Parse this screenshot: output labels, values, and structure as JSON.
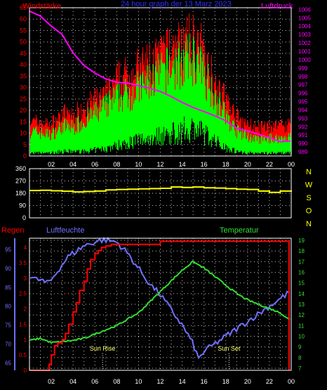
{
  "colors": {
    "background": "#000000",
    "frame": "#ffffff",
    "grid": "#c8c8c8",
    "wind_avg": "#00ff00",
    "wind_gust": "#ff0000",
    "pressure": "#ff00ff",
    "direction": "#ffff00",
    "humidity": "#7070ff",
    "temperature": "#33dd33",
    "rain": "#ff0000"
  },
  "chart_data": [
    {
      "type": "area",
      "title": "24 hour graph der 13 Marz 2023",
      "left_label": "Windstärke",
      "right_label": "Luftdruck",
      "x_ticks": [
        "02",
        "04",
        "06",
        "08",
        "10",
        "12",
        "14",
        "16",
        "18",
        "20",
        "22",
        "00"
      ],
      "y_left_ticks": [
        0,
        5,
        10,
        15,
        20,
        25,
        30,
        35,
        40,
        45,
        50,
        55,
        60,
        65
      ],
      "y_right_ticks": [
        989,
        990,
        991,
        992,
        993,
        994,
        995,
        996,
        997,
        998,
        999,
        1000,
        1001,
        1002,
        1003,
        1004,
        1005,
        1006
      ],
      "ylim_left": [
        0,
        65
      ],
      "ylim_right": [
        988.5,
        1006.2
      ],
      "xlim": [
        0,
        24
      ],
      "grid": true,
      "series": [
        {
          "name": "Windstärke",
          "x": [
            0,
            1,
            2,
            3,
            4,
            5,
            6,
            7,
            8,
            9,
            10,
            11,
            12,
            13,
            14,
            15,
            16,
            17,
            18,
            19,
            20,
            21,
            22,
            23,
            24
          ],
          "low": [
            2,
            2,
            2,
            3,
            3,
            3,
            4,
            5,
            7,
            9,
            11,
            12,
            14,
            15,
            17,
            19,
            15,
            10,
            6,
            3,
            2,
            2,
            2,
            2,
            2
          ],
          "high": [
            14,
            13,
            12,
            17,
            16,
            20,
            24,
            28,
            33,
            35,
            38,
            42,
            46,
            50,
            52,
            55,
            46,
            34,
            22,
            14,
            11,
            9,
            10,
            10,
            11
          ]
        },
        {
          "name": "Windböen",
          "x": [
            0,
            1,
            2,
            3,
            4,
            5,
            6,
            7,
            8,
            9,
            10,
            11,
            12,
            13,
            14,
            15,
            16,
            17,
            18,
            19,
            20,
            21,
            22,
            23,
            24
          ],
          "high": [
            18,
            17,
            16,
            22,
            21,
            26,
            30,
            34,
            40,
            45,
            48,
            52,
            56,
            60,
            62,
            65,
            56,
            42,
            30,
            20,
            16,
            14,
            15,
            16,
            17
          ]
        },
        {
          "name": "Luftdruck",
          "x": [
            0,
            1,
            2,
            3,
            4,
            5,
            6,
            7,
            8,
            9,
            10,
            11,
            12,
            13,
            14,
            15,
            16,
            17,
            18,
            19,
            20,
            21,
            22,
            23,
            24
          ],
          "y": [
            1005.8,
            1005.2,
            1004.0,
            1003.0,
            1000.8,
            999.3,
            998.4,
            997.7,
            997.3,
            997.2,
            996.9,
            996.6,
            996.2,
            995.6,
            994.9,
            994.3,
            993.8,
            993.3,
            992.7,
            991.8,
            991.5,
            991.1,
            990.7,
            990.2,
            990.3
          ]
        }
      ]
    },
    {
      "type": "line",
      "right_label": [
        "N",
        "W",
        "S",
        "O",
        "N"
      ],
      "y_ticks": [
        0,
        90,
        180,
        270,
        360
      ],
      "ylim": [
        0,
        360
      ],
      "xlim": [
        0,
        24
      ],
      "grid": true,
      "series": [
        {
          "name": "Windrichtung",
          "x": [
            0,
            1,
            2,
            3,
            4,
            5,
            6,
            7,
            8,
            9,
            10,
            11,
            12,
            13,
            14,
            15,
            16,
            17,
            18,
            19,
            20,
            21,
            22,
            23,
            24
          ],
          "y": [
            200,
            202,
            198,
            195,
            190,
            193,
            196,
            204,
            208,
            210,
            212,
            214,
            216,
            226,
            222,
            226,
            220,
            218,
            214,
            210,
            208,
            196,
            186,
            196,
            202
          ]
        }
      ]
    },
    {
      "type": "line",
      "left_label": "Regen",
      "mid_label": "Luftfeuchte",
      "right_label": "Temperatur",
      "x_ticks": [
        "02",
        "04",
        "06",
        "08",
        "10",
        "12",
        "14",
        "16",
        "18",
        "20",
        "22",
        "00"
      ],
      "y_rain_ticks": [
        0,
        0.5,
        1,
        1.5,
        2,
        2.5,
        3,
        3.5,
        4
      ],
      "y_humidity_ticks": [
        65,
        70,
        75,
        80,
        85,
        90,
        95
      ],
      "y_temp_ticks": [
        7,
        8,
        9,
        10,
        11,
        12,
        13,
        14,
        15,
        16,
        17,
        18,
        19
      ],
      "ylim_rain": [
        0,
        4.3
      ],
      "ylim_humidity": [
        63,
        98
      ],
      "ylim_temp": [
        6.8,
        19.2
      ],
      "xlim": [
        0,
        24
      ],
      "grid": true,
      "annotations": [
        {
          "text": "Sun Rise",
          "x": 6.7
        },
        {
          "text": "Sun Set",
          "x": 18.3
        }
      ],
      "series": [
        {
          "name": "Regen",
          "x": [
            0,
            1.6,
            1.8,
            2,
            2.3,
            2.6,
            3,
            3.3,
            3.6,
            4,
            4.3,
            4.6,
            5,
            5.3,
            5.6,
            6,
            6.3,
            6.6,
            7,
            7.5,
            8,
            9,
            10,
            11,
            11.5,
            12,
            13,
            14,
            15,
            16,
            17,
            18,
            19,
            20,
            21,
            22,
            23,
            23.6,
            23.8
          ],
          "y": [
            0,
            0,
            0.2,
            0.5,
            0.8,
            0.9,
            1.0,
            1.2,
            1.5,
            1.9,
            2.2,
            2.6,
            2.9,
            3.3,
            3.6,
            3.8,
            3.9,
            4.0,
            4.05,
            4.1,
            4.1,
            4.1,
            4.1,
            4.1,
            4.1,
            4.2,
            4.2,
            4.2,
            4.2,
            4.2,
            4.2,
            4.2,
            4.2,
            4.2,
            4.2,
            4.2,
            4.2,
            4.2,
            0
          ]
        },
        {
          "name": "Luftfeuchte",
          "x": [
            0,
            0.6,
            1,
            1.6,
            2,
            2.5,
            3,
            3.5,
            4,
            4.5,
            5,
            5.5,
            6,
            6.5,
            7,
            8,
            9,
            10,
            11,
            12,
            13,
            14,
            15,
            15.5,
            16,
            17,
            18,
            19,
            20,
            21,
            22,
            23,
            24
          ],
          "y": [
            88,
            87,
            87,
            86,
            87,
            89,
            91,
            93,
            94,
            95,
            96,
            96.5,
            97,
            97.5,
            97.5,
            97,
            94,
            90,
            86,
            83,
            79,
            75,
            70,
            66,
            68,
            70,
            72,
            74,
            76,
            78,
            80,
            82,
            84
          ]
        },
        {
          "name": "Temperatur",
          "x": [
            0,
            1,
            2,
            3,
            4,
            5,
            6,
            7,
            8,
            9,
            10,
            11,
            12,
            13,
            14,
            14.5,
            15,
            16,
            17,
            18,
            19,
            20,
            21,
            22,
            23,
            24
          ],
          "y": [
            9.6,
            9.8,
            9.4,
            9.5,
            9.6,
            9.8,
            10.2,
            10.6,
            11.0,
            11.6,
            12.2,
            13.2,
            14.2,
            15.2,
            16.2,
            16.6,
            17.0,
            16.4,
            15.6,
            14.8,
            14.0,
            13.4,
            13.0,
            12.6,
            12.2,
            11.4
          ]
        }
      ]
    }
  ]
}
